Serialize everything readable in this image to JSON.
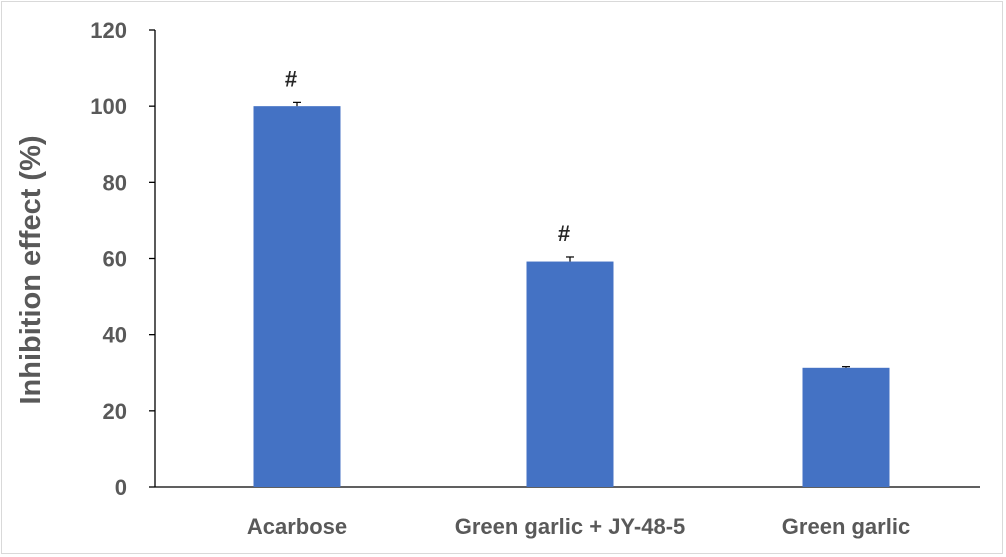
{
  "chart_data": {
    "type": "bar",
    "title": "",
    "xlabel": "",
    "ylabel": "Inhibition effect (%)",
    "categories": [
      "Acarbose",
      "Green garlic + JY-48-5",
      "Green garlic"
    ],
    "values": [
      100,
      59.2,
      31.3
    ],
    "errors": [
      1.0,
      1.2,
      0.3
    ],
    "annotations": [
      "#",
      "#",
      ""
    ],
    "ylim": [
      0,
      120
    ],
    "yticks": [
      0,
      20,
      40,
      60,
      80,
      100,
      120
    ],
    "yticklabels": [
      "0",
      "20",
      "40",
      "60",
      "80",
      "100",
      "120"
    ],
    "grid": false,
    "legend": "none",
    "colors": {
      "bar": "#4472C4",
      "axis": "#000000",
      "text": "#595959",
      "annotation": "#262626"
    }
  }
}
